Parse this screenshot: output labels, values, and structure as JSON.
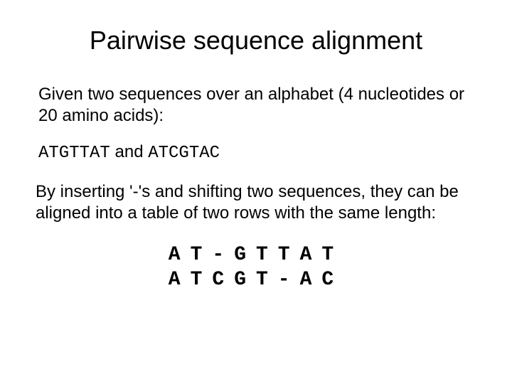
{
  "title": "Pairwise sequence alignment",
  "para1": "Given two sequences over an alphabet (4 nucleotides or 20 amino acids):",
  "seq1": "ATGTTAT",
  "join_word": " and ",
  "seq2": "ATCGTAC",
  "para2": "By inserting '-'s and shifting two sequences, they can be aligned into a table of two rows with the same length:",
  "alignment": {
    "row1": "AT-GTTAT",
    "row2": "ATCGT-AC"
  },
  "colors": {
    "background": "#ffffff",
    "text": "#000000"
  },
  "fonts": {
    "body": "Arial",
    "mono": "Courier New"
  },
  "font_sizes": {
    "title": 36,
    "body": 24,
    "alignment": 28
  }
}
